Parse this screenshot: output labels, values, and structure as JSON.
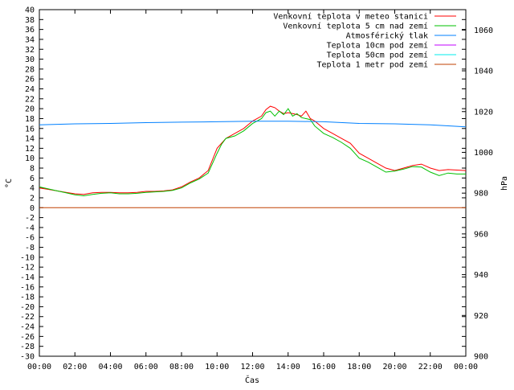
{
  "chart_data": {
    "type": "line",
    "xlabel": "Čas",
    "ylabel": "°C",
    "y2label": "hPa",
    "xlim": [
      0,
      24
    ],
    "ylim": [
      -30,
      40
    ],
    "y2lim": [
      900,
      1070
    ],
    "grid": false,
    "legend_position": "top-right",
    "x_ticks": [
      "00:00",
      "02:00",
      "04:00",
      "06:00",
      "08:00",
      "10:00",
      "12:00",
      "14:00",
      "16:00",
      "18:00",
      "20:00",
      "22:00",
      "00:00"
    ],
    "y_ticks": [
      40,
      38,
      36,
      34,
      32,
      30,
      28,
      26,
      24,
      22,
      20,
      18,
      16,
      14,
      12,
      10,
      8,
      6,
      4,
      2,
      0,
      -2,
      -4,
      -6,
      -8,
      -10,
      -12,
      -14,
      -16,
      -18,
      -20,
      -22,
      -24,
      -26,
      -28,
      -30
    ],
    "y2_ticks": [
      1060,
      1040,
      1020,
      1000,
      980,
      960,
      940,
      920,
      900
    ],
    "series": [
      {
        "name": "Venkovní teplota v meteo stanici",
        "color": "#ff0000",
        "axis": "left",
        "x": [
          0,
          0.5,
          1,
          1.5,
          2,
          2.5,
          3,
          3.5,
          4,
          4.5,
          5,
          5.5,
          6,
          6.5,
          7,
          7.5,
          8,
          8.5,
          9,
          9.5,
          10,
          10.25,
          10.5,
          11,
          11.5,
          12,
          12.5,
          12.75,
          13,
          13.25,
          13.5,
          13.75,
          14,
          14.25,
          14.5,
          14.75,
          15,
          15.25,
          15.5,
          16,
          16.5,
          17,
          17.5,
          18,
          18.5,
          19,
          19.5,
          20,
          20.5,
          21,
          21.5,
          22,
          22.5,
          23,
          23.5,
          24
        ],
        "values": [
          4.0,
          3.7,
          3.4,
          3.1,
          2.8,
          2.7,
          3.0,
          3.1,
          3.1,
          3.0,
          3.0,
          3.1,
          3.3,
          3.3,
          3.4,
          3.6,
          4.2,
          5.2,
          6.0,
          7.5,
          12.0,
          13.0,
          14.0,
          15.0,
          16.0,
          17.5,
          18.5,
          19.8,
          20.5,
          20.2,
          19.5,
          19.0,
          19.2,
          19.0,
          18.8,
          18.5,
          19.5,
          18.0,
          17.5,
          16.0,
          15.0,
          14.0,
          13.0,
          11.0,
          10.0,
          9.0,
          8.0,
          7.5,
          8.0,
          8.5,
          8.8,
          8.0,
          7.5,
          7.7,
          7.6,
          7.5
        ]
      },
      {
        "name": "Venkovní teplota 5 cm nad zemí",
        "color": "#00c000",
        "axis": "left",
        "x": [
          0,
          0.5,
          1,
          1.5,
          2,
          2.5,
          3,
          3.5,
          4,
          4.5,
          5,
          5.5,
          6,
          6.5,
          7,
          7.5,
          8,
          8.5,
          9,
          9.5,
          10,
          10.25,
          10.5,
          11,
          11.5,
          12,
          12.5,
          12.75,
          13,
          13.25,
          13.5,
          13.75,
          14,
          14.25,
          14.5,
          14.75,
          15,
          15.25,
          15.5,
          16,
          16.5,
          17,
          17.5,
          18,
          18.5,
          19,
          19.5,
          20,
          20.5,
          21,
          21.5,
          22,
          22.5,
          23,
          23.5,
          24
        ],
        "values": [
          4.2,
          3.8,
          3.4,
          3.0,
          2.6,
          2.4,
          2.7,
          2.9,
          3.0,
          2.8,
          2.8,
          2.9,
          3.1,
          3.2,
          3.3,
          3.5,
          4.0,
          5.0,
          5.8,
          7.0,
          11.0,
          12.8,
          14.0,
          14.5,
          15.5,
          17.0,
          18.0,
          19.2,
          19.5,
          18.5,
          19.5,
          18.8,
          20.0,
          18.5,
          19.0,
          18.2,
          18.0,
          17.8,
          16.5,
          15.0,
          14.2,
          13.2,
          12.0,
          10.0,
          9.2,
          8.2,
          7.2,
          7.4,
          7.8,
          8.3,
          8.2,
          7.2,
          6.5,
          7.0,
          6.8,
          6.8
        ]
      },
      {
        "name": "Atmosférický tlak",
        "color": "#0080ff",
        "axis": "right",
        "x": [
          0,
          2,
          4,
          6,
          8,
          10,
          12,
          14,
          16,
          18,
          20,
          22,
          24
        ],
        "values": [
          1013.5,
          1014.0,
          1014.2,
          1014.6,
          1014.8,
          1015.0,
          1015.3,
          1015.3,
          1015.0,
          1014.2,
          1014.0,
          1013.5,
          1012.5
        ]
      },
      {
        "name": "Teplota 10cm pod zemí",
        "color": "#c000ff",
        "axis": "left",
        "x": [],
        "values": []
      },
      {
        "name": "Teplota 50cm pod zemí",
        "color": "#00eeee",
        "axis": "left",
        "x": [],
        "values": []
      },
      {
        "name": "Teplota 1 metr pod zemí",
        "color": "#c04000",
        "axis": "left",
        "x": [
          0,
          24
        ],
        "values": [
          0,
          0
        ]
      }
    ]
  }
}
